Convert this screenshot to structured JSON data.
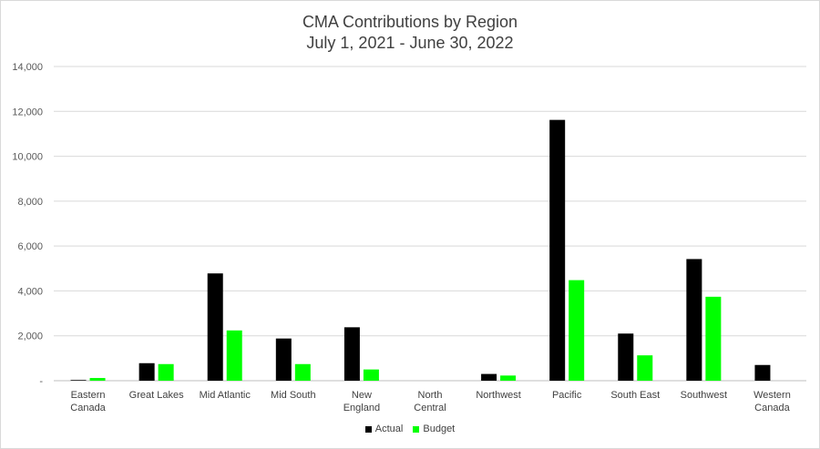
{
  "chart_data": {
    "type": "bar",
    "title": "CMA Contributions by Region",
    "subtitle": "July 1, 2021 - June 30, 2022",
    "xlabel": "",
    "ylabel": "",
    "ylim": [
      0,
      14000
    ],
    "yticks": [
      0,
      2000,
      4000,
      6000,
      8000,
      10000,
      12000,
      14000
    ],
    "ytick_labels": [
      "-",
      "2,000",
      "4,000",
      "6,000",
      "8,000",
      "10,000",
      "12,000",
      "14,000"
    ],
    "grid": true,
    "legend_position": "bottom",
    "categories": [
      [
        "Eastern",
        "Canada"
      ],
      [
        "Great Lakes"
      ],
      [
        "Mid Atlantic"
      ],
      [
        "Mid South"
      ],
      [
        "New",
        "England"
      ],
      [
        "North",
        "Central"
      ],
      [
        "Northwest"
      ],
      [
        "Pacific"
      ],
      [
        "South East"
      ],
      [
        "Southwest"
      ],
      [
        "Western",
        "Canada"
      ]
    ],
    "series": [
      {
        "name": "Actual",
        "color": "#000000",
        "values": [
          30,
          780,
          4780,
          1880,
          2380,
          0,
          300,
          11620,
          2100,
          5420,
          700
        ]
      },
      {
        "name": "Budget",
        "color": "#00ff00",
        "values": [
          120,
          740,
          2240,
          740,
          500,
          0,
          230,
          4480,
          1130,
          3740,
          0
        ]
      }
    ]
  }
}
